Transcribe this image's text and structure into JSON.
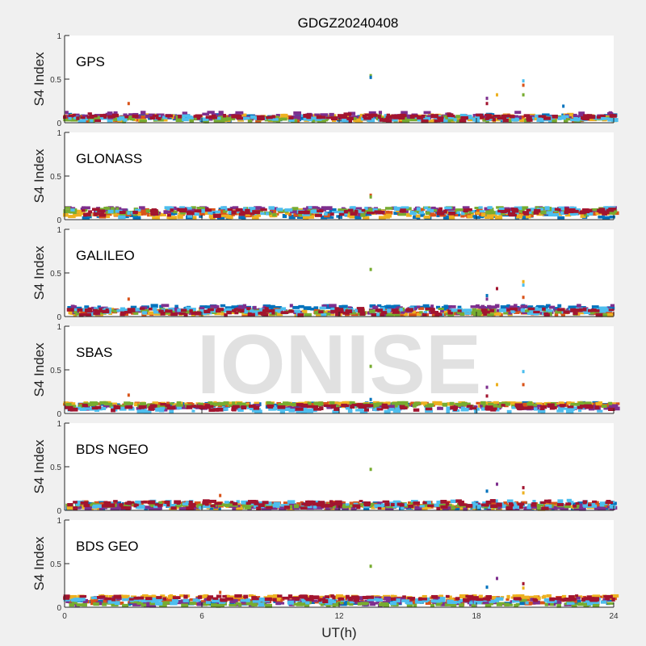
{
  "chart_data": {
    "type": "scatter",
    "title": "GDGZ20240408",
    "xlabel": "UT(h)",
    "ylabel": "S4 Index",
    "xlim": [
      0,
      24
    ],
    "ylim": [
      0,
      1
    ],
    "xticks": [
      "0",
      "6",
      "12",
      "18",
      "24"
    ],
    "yticks": [
      "0",
      "0.5",
      "1"
    ],
    "watermark": "IONISE",
    "series_colors": [
      "#0072BD",
      "#D95319",
      "#EDB120",
      "#7E2F8E",
      "#77AC30",
      "#4DBEEE",
      "#A2142F"
    ],
    "panels": [
      {
        "name": "GPS",
        "baseline": 0.07,
        "spread": 0.03,
        "spikes": [
          [
            2.8,
            0.22
          ],
          [
            13.38,
            0.54
          ],
          [
            13.38,
            0.52
          ],
          [
            18.46,
            0.28
          ],
          [
            18.46,
            0.22
          ],
          [
            18.9,
            0.32
          ],
          [
            20.05,
            0.48
          ],
          [
            20.05,
            0.43
          ],
          [
            20.05,
            0.32
          ],
          [
            21.8,
            0.19
          ]
        ]
      },
      {
        "name": "GLONASS",
        "baseline": 0.08,
        "spread": 0.035,
        "spikes": [
          [
            13.38,
            0.28
          ],
          [
            13.38,
            0.26
          ]
        ]
      },
      {
        "name": "GALILEO",
        "baseline": 0.07,
        "spread": 0.035,
        "spikes": [
          [
            2.8,
            0.2
          ],
          [
            13.38,
            0.54
          ],
          [
            18.46,
            0.24
          ],
          [
            18.46,
            0.2
          ],
          [
            18.9,
            0.32
          ],
          [
            20.05,
            0.4
          ],
          [
            20.05,
            0.36
          ],
          [
            20.05,
            0.22
          ]
        ]
      },
      {
        "name": "SBAS",
        "baseline": 0.09,
        "spread": 0.02,
        "spikes": [
          [
            2.8,
            0.21
          ],
          [
            13.38,
            0.54
          ],
          [
            13.38,
            0.16
          ],
          [
            18.46,
            0.3
          ],
          [
            18.46,
            0.2
          ],
          [
            18.9,
            0.33
          ],
          [
            20.05,
            0.48
          ],
          [
            20.05,
            0.33
          ]
        ]
      },
      {
        "name": "BDS NGEO",
        "baseline": 0.08,
        "spread": 0.03,
        "spikes": [
          [
            6.8,
            0.17
          ],
          [
            13.38,
            0.47
          ],
          [
            18.46,
            0.22
          ],
          [
            18.9,
            0.3
          ],
          [
            20.05,
            0.26
          ],
          [
            20.05,
            0.2
          ]
        ]
      },
      {
        "name": "BDS GEO",
        "baseline": 0.09,
        "spread": 0.025,
        "spikes": [
          [
            6.8,
            0.17
          ],
          [
            13.38,
            0.47
          ],
          [
            18.46,
            0.23
          ],
          [
            18.9,
            0.33
          ],
          [
            20.05,
            0.27
          ],
          [
            20.05,
            0.22
          ]
        ]
      }
    ]
  }
}
